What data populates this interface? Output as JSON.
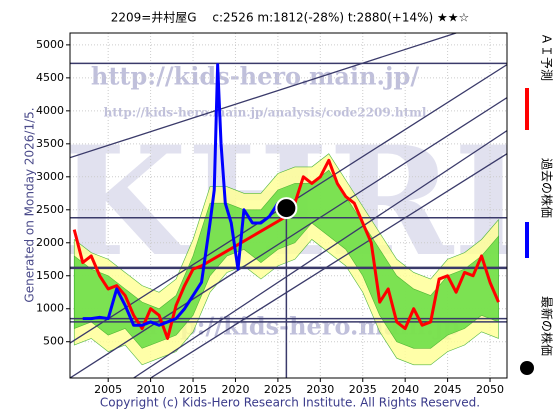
{
  "chart_data": {
    "type": "line",
    "title": "2209=井村屋G　 c:2526  m:1812(-28%)  t:2880(+14%)  ★★☆",
    "side_note": "Generated on Monday 2026/1/5.",
    "footer": "Copyright (c) Kids-Hero Research Institute. All Rights Reserved.",
    "watermarks": [
      "http://kids-hero.main.jp/",
      "http://kids-hero.main.jp/analysis/code2209.html",
      "KHRI",
      "http://kids-hero.main.jp"
    ],
    "xlim": [
      2000.5,
      2052
    ],
    "xticks": [
      2005,
      2010,
      2015,
      2020,
      2025,
      2030,
      2035,
      2040,
      2045,
      2050
    ],
    "ylim": [
      -50,
      5180
    ],
    "yticks": [
      500,
      1000,
      1500,
      2000,
      2500,
      3000,
      3500,
      4000,
      4500,
      5000
    ],
    "grid": true,
    "line_color": "#3a3a6a",
    "bands": [
      {
        "color": "#ffff99",
        "x": [
          2001,
          2003,
          2005,
          2007,
          2009,
          2011,
          2013,
          2015,
          2017,
          2019,
          2021,
          2023,
          2025,
          2027,
          2029,
          2031,
          2033,
          2035,
          2037,
          2039,
          2041,
          2043,
          2045,
          2047,
          2049,
          2051
        ],
        "low": [
          450,
          550,
          350,
          450,
          150,
          250,
          350,
          650,
          1250,
          1550,
          1650,
          1450,
          1650,
          1750,
          2050,
          1850,
          1650,
          1250,
          650,
          250,
          150,
          150,
          350,
          450,
          650,
          550
        ],
        "high": [
          2050,
          1850,
          1750,
          1550,
          1350,
          1250,
          1450,
          2050,
          2850,
          2850,
          2750,
          2750,
          3050,
          3150,
          3150,
          3350,
          2950,
          2550,
          2150,
          1750,
          1550,
          1450,
          1750,
          1850,
          2050,
          2350
        ]
      },
      {
        "color": "#66dd44",
        "x": [
          2001,
          2003,
          2005,
          2007,
          2009,
          2011,
          2013,
          2015,
          2017,
          2019,
          2021,
          2023,
          2025,
          2027,
          2029,
          2031,
          2033,
          2035,
          2037,
          2039,
          2041,
          2043,
          2045,
          2047,
          2049,
          2051
        ],
        "low": [
          700,
          800,
          600,
          700,
          400,
          500,
          600,
          900,
          1500,
          1800,
          1900,
          1700,
          1900,
          2000,
          2300,
          2100,
          1900,
          1500,
          900,
          500,
          400,
          400,
          600,
          700,
          900,
          800
        ],
        "high": [
          1800,
          1600,
          1500,
          1300,
          1100,
          1000,
          1200,
          1800,
          2600,
          2600,
          2500,
          2500,
          2800,
          2900,
          2900,
          3100,
          2700,
          2300,
          1900,
          1500,
          1300,
          1200,
          1500,
          1600,
          1800,
          2100
        ]
      }
    ],
    "trend_lines": [
      {
        "x": [
          2000.5,
          2046
        ],
        "values": [
          3290,
          5180
        ]
      },
      {
        "x": [
          2000.5,
          2052
        ],
        "values": [
          480,
          4700
        ]
      },
      {
        "x": [
          2000.5,
          2052
        ],
        "values": [
          -50,
          4200
        ]
      },
      {
        "x": [
          2008,
          2052
        ],
        "values": [
          -50,
          3700
        ]
      },
      {
        "x": [
          2010,
          2052
        ],
        "values": [
          -50,
          3350
        ]
      }
    ],
    "hlines": [
      4720,
      2380,
      1620,
      850,
      800
    ],
    "vline": 2026,
    "series": [
      {
        "name": "ＡＩ予測",
        "color": "#ff0000",
        "x": [
          2001,
          2002,
          2003,
          2004,
          2005,
          2006,
          2007,
          2008,
          2009,
          2010,
          2011,
          2012,
          2013,
          2014,
          2015,
          2016,
          2026,
          2027,
          2028,
          2029,
          2030,
          2031,
          2032,
          2033,
          2034,
          2035,
          2036,
          2037,
          2038,
          2039,
          2040,
          2041,
          2042,
          2043,
          2044,
          2045,
          2046,
          2047,
          2048,
          2049,
          2050,
          2051
        ],
        "values": [
          2200,
          1700,
          1800,
          1500,
          1300,
          1350,
          1200,
          900,
          700,
          1000,
          900,
          550,
          1050,
          1350,
          1600,
          1650,
          2400,
          2600,
          3000,
          2900,
          3000,
          3250,
          2900,
          2700,
          2600,
          2300,
          2000,
          1100,
          1300,
          800,
          700,
          1000,
          750,
          800,
          1450,
          1500,
          1250,
          1550,
          1500,
          1800,
          1400,
          1100
        ]
      },
      {
        "name": "過去の株価",
        "color": "#0000ff",
        "x": [
          2002,
          2003,
          2004,
          2005,
          2006,
          2007,
          2008,
          2009,
          2010,
          2011,
          2012,
          2013,
          2014,
          2015,
          2016,
          2017,
          2017.5,
          2017.9,
          2018.3,
          2018.8,
          2019.5,
          2020.3,
          2021,
          2022,
          2023,
          2024,
          2025,
          2026
        ],
        "values": [
          850,
          850,
          870,
          850,
          1300,
          1050,
          750,
          750,
          800,
          750,
          800,
          850,
          1000,
          1200,
          1400,
          2300,
          2800,
          4700,
          3500,
          2600,
          2300,
          1600,
          2500,
          2300,
          2300,
          2400,
          2600,
          2526
        ]
      },
      {
        "name": "最新の株価",
        "color": "#000000",
        "marker": true,
        "x": [
          2026
        ],
        "values": [
          2526
        ]
      }
    ]
  }
}
